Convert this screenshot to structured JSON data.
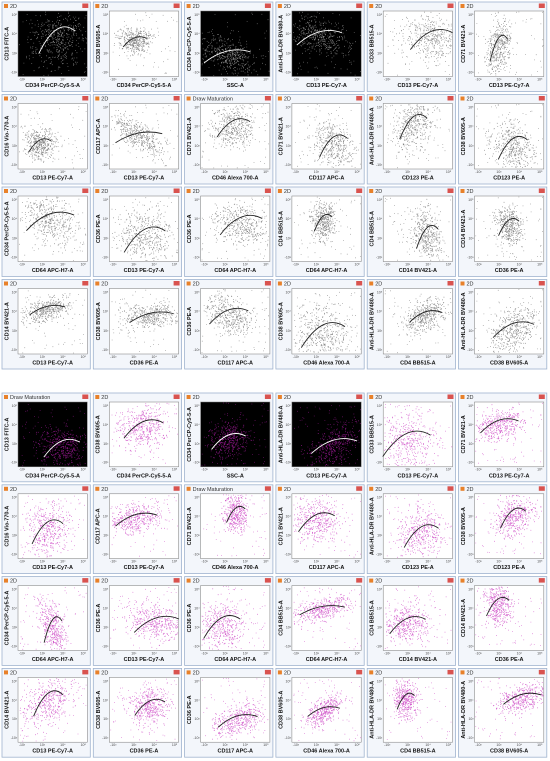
{
  "grids": [
    {
      "dot_color": "#555555",
      "ticks": [
        "-10³",
        "10³",
        "10⁴",
        "10⁵"
      ],
      "panels": [
        {
          "title": "2D",
          "x": "CD34 PerCP-Cy5-5-A",
          "y": "CD13 FITC-A",
          "theme": "dark"
        },
        {
          "title": "2D",
          "x": "CD34 PerCP-Cy5-5-A",
          "y": "CD38 BV605-A",
          "theme": "light"
        },
        {
          "title": "2D",
          "x": "SSC-A",
          "y": "CD34 PerCP-Cy5-5-A",
          "theme": "dark"
        },
        {
          "title": "2D",
          "x": "CD13 PE-Cy7-A",
          "y": "Anti-HLA-DR BV480-A",
          "theme": "dark"
        },
        {
          "title": "2D",
          "x": "CD13 PE-Cy7-A",
          "y": "CD33 BB515-A",
          "theme": "light"
        },
        {
          "title": "2D",
          "x": "CD13 PE-Cy7-A",
          "y": "CD71 BV421-A",
          "theme": "light"
        },
        {
          "title": "2D",
          "x": "CD13 PE-Cy7-A",
          "y": "CD16 Vio-770-A",
          "theme": "light"
        },
        {
          "title": "2D",
          "x": "CD13 PE-Cy7-A",
          "y": "CD117 APC-A",
          "theme": "light"
        },
        {
          "title": "Draw Maturation",
          "x": "CD46 Alexa 700-A",
          "y": "CD71 BV421-A",
          "theme": "light"
        },
        {
          "title": "2D",
          "x": "CD117 APC-A",
          "y": "CD71 BV421-A",
          "theme": "light"
        },
        {
          "title": "2D",
          "x": "CD123 PE-A",
          "y": "Anti-HLA-DR BV480-A",
          "theme": "light"
        },
        {
          "title": "2D",
          "x": "CD123 PE-A",
          "y": "CD38 BV605-A",
          "theme": "light"
        },
        {
          "title": "2D",
          "x": "CD64 APC-H7-A",
          "y": "CD34 PerCP-Cy5-5-A",
          "theme": "light"
        },
        {
          "title": "2D",
          "x": "CD13 PE-Cy7-A",
          "y": "CD36 PE-A",
          "theme": "light"
        },
        {
          "title": "2D",
          "x": "CD64 APC-H7-A",
          "y": "CD36 PE-A",
          "theme": "light"
        },
        {
          "title": "2D",
          "x": "CD64 APC-H7-A",
          "y": "CD4 BB515-A",
          "theme": "light"
        },
        {
          "title": "2D",
          "x": "CD14 BV421-A",
          "y": "CD4 BB515-A",
          "theme": "light"
        },
        {
          "title": "2D",
          "x": "CD36 PE-A",
          "y": "CD14 BV421-A",
          "theme": "light"
        },
        {
          "title": "2D",
          "x": "CD13 PE-Cy7-A",
          "y": "CD14 BV421-A",
          "theme": "light"
        },
        {
          "title": "2D",
          "x": "CD36 PE-A",
          "y": "CD38 BV605-A",
          "theme": "light"
        },
        {
          "title": "2D",
          "x": "CD117 APC-A",
          "y": "CD36 PE-A",
          "theme": "light"
        },
        {
          "title": "2D",
          "x": "CD46 Alexa 700-A",
          "y": "CD38 BV605-A",
          "theme": "light"
        },
        {
          "title": "2D",
          "x": "CD4 BB515-A",
          "y": "Anti-HLA-DR BV480-A",
          "theme": "light"
        },
        {
          "title": "2D",
          "x": "CD38 BV605-A",
          "y": "Anti-HLA-DR BV480-A",
          "theme": "light"
        }
      ]
    },
    {
      "dot_color": "#c21fb8",
      "ticks": [
        "-10³",
        "10³",
        "10⁴",
        "10⁵"
      ],
      "panels": [
        {
          "title": "Draw Maturation",
          "x": "CD34 PerCP-Cy5-5-A",
          "y": "CD13 FITC-A",
          "theme": "dark"
        },
        {
          "title": "2D",
          "x": "CD34 PerCP-Cy5-5-A",
          "y": "CD38 BV605-A",
          "theme": "light"
        },
        {
          "title": "2D",
          "x": "SSC-A",
          "y": "CD34 PerCP-Cy5-5-A",
          "theme": "dark"
        },
        {
          "title": "2D",
          "x": "CD13 PE-Cy7-A",
          "y": "Anti-HLA-DR BV480-A",
          "theme": "dark"
        },
        {
          "title": "2D",
          "x": "CD13 PE-Cy7-A",
          "y": "CD33 BB515-A",
          "theme": "light"
        },
        {
          "title": "2D",
          "x": "CD13 PE-Cy7-A",
          "y": "CD71 BV421-A",
          "theme": "light"
        },
        {
          "title": "2D",
          "x": "CD13 PE-Cy7-A",
          "y": "CD16 Vio-770-A",
          "theme": "light"
        },
        {
          "title": "2D",
          "x": "CD13 PE-Cy7-A",
          "y": "CD117 APC-A",
          "theme": "light"
        },
        {
          "title": "Draw Maturation",
          "x": "CD46 Alexa 700-A",
          "y": "CD71 BV421-A",
          "theme": "light"
        },
        {
          "title": "2D",
          "x": "CD117 APC-A",
          "y": "CD71 BV421-A",
          "theme": "light"
        },
        {
          "title": "2D",
          "x": "CD123 PE-A",
          "y": "Anti-HLA-DR BV480-A",
          "theme": "light"
        },
        {
          "title": "2D",
          "x": "CD123 PE-A",
          "y": "CD38 BV605-A",
          "theme": "light"
        },
        {
          "title": "2D",
          "x": "CD64 APC-H7-A",
          "y": "CD34 PerCP-Cy5-5-A",
          "theme": "light"
        },
        {
          "title": "2D",
          "x": "CD13 PE-Cy7-A",
          "y": "CD36 PE-A",
          "theme": "light"
        },
        {
          "title": "2D",
          "x": "CD64 APC-H7-A",
          "y": "CD36 PE-A",
          "theme": "light"
        },
        {
          "title": "2D",
          "x": "CD64 APC-H7-A",
          "y": "CD4 BB515-A",
          "theme": "light"
        },
        {
          "title": "2D",
          "x": "CD14 BV421-A",
          "y": "CD4 BB515-A",
          "theme": "light"
        },
        {
          "title": "2D",
          "x": "CD36 PE-A",
          "y": "CD14 BV421-A",
          "theme": "light"
        },
        {
          "title": "2D",
          "x": "CD13 PE-Cy7-A",
          "y": "CD14 BV421-A",
          "theme": "light"
        },
        {
          "title": "2D",
          "x": "CD36 PE-A",
          "y": "CD38 BV605-A",
          "theme": "light"
        },
        {
          "title": "2D",
          "x": "CD117 APC-A",
          "y": "CD36 PE-A",
          "theme": "light"
        },
        {
          "title": "2D",
          "x": "CD46 Alexa 700-A",
          "y": "CD38 BV605-A",
          "theme": "light"
        },
        {
          "title": "2D",
          "x": "CD4 BB515-A",
          "y": "Anti-HLA-DR BV480-A",
          "theme": "light"
        },
        {
          "title": "2D",
          "x": "CD38 BV605-A",
          "y": "Anti-HLA-DR BV480-A",
          "theme": "light"
        }
      ]
    }
  ]
}
